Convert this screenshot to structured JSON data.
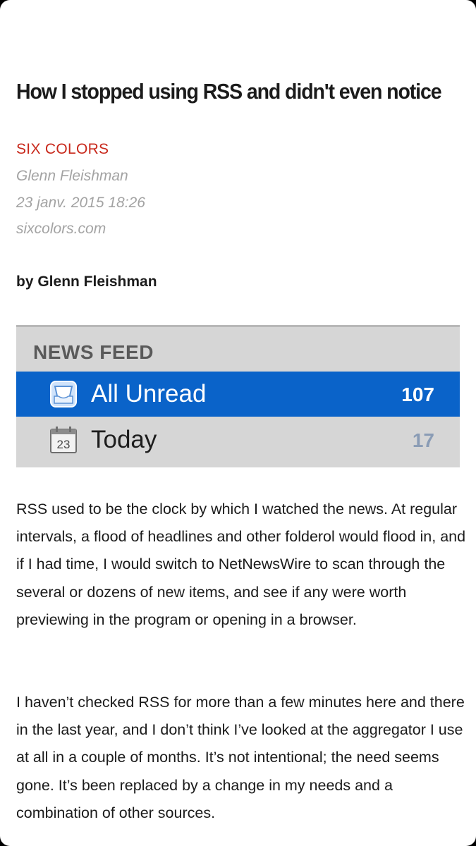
{
  "article": {
    "title": "How I stopped using RSS and didn't even notice",
    "source": "SIX COLORS",
    "author": "Glenn Fleishman",
    "date": "23 janv. 2015 18:26",
    "domain": "sixcolors.com",
    "byline": "by Glenn Fleishman",
    "paragraphs": [
      "RSS used to be the clock by which I watched the news. At regular intervals, a flood of headlines and other folderol would flood in, and if I had time, I would switch to NetNewsWire to scan through the several or dozens of new items, and see if any were worth previewing in the program or opening in a browser.",
      "I haven’t checked RSS for more than a few minutes here and there in the last year, and I don’t think I’ve looked at the aggregator I use at all in a couple of months. It’s not intentional; the need seems gone. It’s been replaced by a change in my needs and a combination of other sources."
    ]
  },
  "figure": {
    "heading": "NEWS FEED",
    "rows": [
      {
        "label": "All Unread",
        "count": "107",
        "icon": "inbox-tray-icon",
        "selected": true
      },
      {
        "label": "Today",
        "count": "17",
        "icon": "calendar-icon",
        "calendar_day": "23",
        "selected": false
      }
    ]
  },
  "colors": {
    "source_red": "#c8281b",
    "meta_gray": "#a3a3a3",
    "selection_blue": "#0a63c9",
    "figure_bg": "#d6d6d6"
  }
}
